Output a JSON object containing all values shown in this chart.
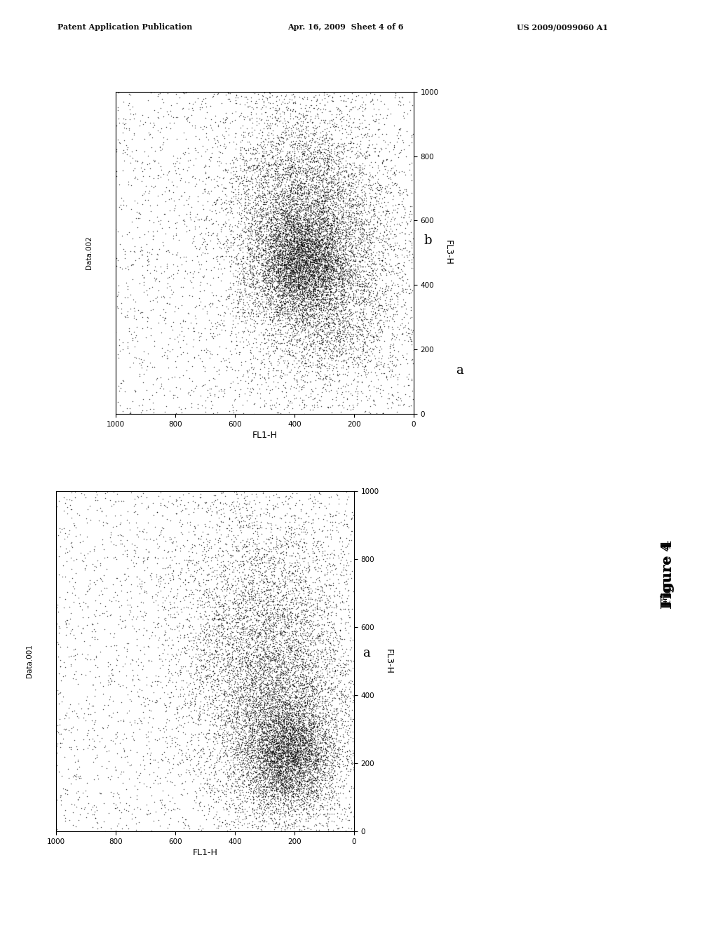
{
  "background_color": "#ffffff",
  "header_line1": "Patent Application Publication",
  "header_line2": "Apr. 16, 2009  Sheet 4 of 6",
  "header_line3": "US 2009/0099060 A1",
  "figure_label": "Figure 4",
  "panel_a_label": "a",
  "panel_b_label": "b",
  "data_label_a": "Data.001",
  "data_label_b": "Data.002",
  "xlabel": "FL1-H",
  "ylabel": "FL3-H",
  "axis_ticks": [
    0,
    200,
    400,
    600,
    800,
    1000
  ],
  "seed_a": 42,
  "seed_b": 7,
  "dot_size": 1.2,
  "dot_color": "#000000",
  "dot_alpha": 0.6
}
